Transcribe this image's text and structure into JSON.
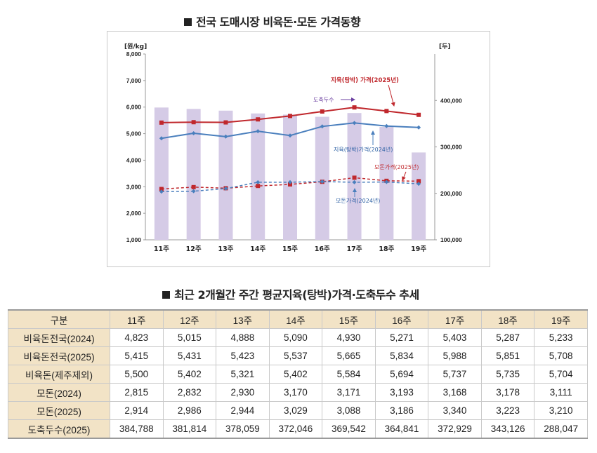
{
  "chart_title": "전국 도매시장 비육돈·모돈 가격동향",
  "table_title": "최근 2개월간 주간 평균지육(탕박)가격·도축두수 추세",
  "chart_data": {
    "type": "bar+line",
    "categories": [
      "11주",
      "12주",
      "13주",
      "14주",
      "15주",
      "16주",
      "17주",
      "18주",
      "19주"
    ],
    "y_left": {
      "label": "[원/kg]",
      "range": [
        1000,
        8000
      ],
      "ticks": [
        "1,000",
        "2,000",
        "3,000",
        "4,000",
        "5,000",
        "6,000",
        "7,000",
        "8,000"
      ]
    },
    "y_right": {
      "label": "[두]",
      "range": [
        100000,
        500000
      ],
      "ticks": [
        "100,000",
        "200,000",
        "300,000",
        "400,000"
      ]
    },
    "bars": {
      "name": "도축두수",
      "axis": "right",
      "color": "#d5cbe6",
      "values": [
        384788,
        381814,
        378059,
        372046,
        369542,
        364841,
        372929,
        343126,
        288047
      ]
    },
    "series": [
      {
        "name": "지육(탕박) 가격(2025년)",
        "axis": "left",
        "color": "#c0282d",
        "style": "solid-square",
        "values": [
          5415,
          5431,
          5423,
          5537,
          5665,
          5834,
          5988,
          5851,
          5708
        ]
      },
      {
        "name": "지육(탕박)가격(2024년)",
        "axis": "left",
        "color": "#4a7fbd",
        "style": "solid-diamond",
        "values": [
          4823,
          5015,
          4888,
          5090,
          4930,
          5271,
          5403,
          5287,
          5233
        ]
      },
      {
        "name": "모돈가격(2025년)",
        "axis": "left",
        "color": "#c0282d",
        "style": "dashed-square",
        "values": [
          2914,
          2986,
          2944,
          3029,
          3088,
          3186,
          3340,
          3223,
          3210
        ]
      },
      {
        "name": "모돈가격(2024년)",
        "axis": "left",
        "color": "#4a7fbd",
        "style": "dashed-diamond",
        "values": [
          2815,
          2832,
          2930,
          3170,
          3171,
          3193,
          3168,
          3178,
          3111
        ]
      }
    ],
    "annotations": {
      "slaughter": "도축두수",
      "pork2025": "지육(탕박) 가격(2025년)",
      "pork2024": "지육(탕박)가격(2024년)",
      "sow2025": "모돈가격(2025년)",
      "sow2024": "모돈가격(2024년)"
    }
  },
  "table": {
    "headers": [
      "구분",
      "11주",
      "12주",
      "13주",
      "14주",
      "15주",
      "16주",
      "17주",
      "18주",
      "19주"
    ],
    "rows": [
      [
        "비육돈전국(2024)",
        "4,823",
        "5,015",
        "4,888",
        "5,090",
        "4,930",
        "5,271",
        "5,403",
        "5,287",
        "5,233"
      ],
      [
        "비육돈전국(2025)",
        "5,415",
        "5,431",
        "5,423",
        "5,537",
        "5,665",
        "5,834",
        "5,988",
        "5,851",
        "5,708"
      ],
      [
        "비육돈(제주제외)",
        "5,500",
        "5,402",
        "5,321",
        "5,402",
        "5,584",
        "5,694",
        "5,737",
        "5,735",
        "5,704"
      ],
      [
        "모돈(2024)",
        "2,815",
        "2,832",
        "2,930",
        "3,170",
        "3,171",
        "3,193",
        "3,168",
        "3,178",
        "3,111"
      ],
      [
        "모돈(2025)",
        "2,914",
        "2,986",
        "2,944",
        "3,029",
        "3,088",
        "3,186",
        "3,340",
        "3,223",
        "3,210"
      ],
      [
        "도축두수(2025)",
        "384,788",
        "381,814",
        "378,059",
        "372,046",
        "369,542",
        "364,841",
        "372,929",
        "343,126",
        "288,047"
      ]
    ]
  }
}
